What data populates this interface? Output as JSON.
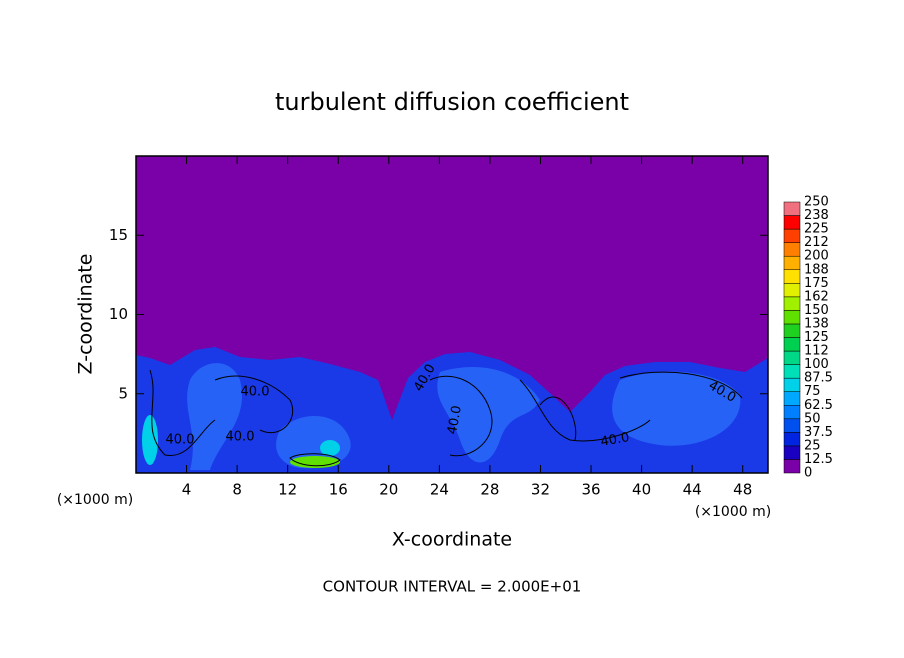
{
  "chart_data": {
    "type": "contour",
    "title": "turbulent diffusion coefficient",
    "xlabel": "X-coordinate",
    "ylabel": "Z-coordinate",
    "x_unit_labels": [
      "(×1000 m)",
      "(×1000 m)"
    ],
    "footer": "CONTOUR INTERVAL = 2.000E+01",
    "xlim": [
      0,
      50
    ],
    "xticks": [
      4,
      8,
      12,
      16,
      20,
      24,
      28,
      32,
      36,
      40,
      44,
      48
    ],
    "ylim": [
      0,
      20
    ],
    "yticks": [
      5,
      10,
      15
    ],
    "contour_labels": [
      "40.0",
      "40.0",
      "40.0",
      "40.0",
      "40.0",
      "40.0",
      "40.0"
    ],
    "colorbar": {
      "levels": [
        0,
        12.5,
        25,
        37.5,
        50,
        62.5,
        75,
        87.5,
        100,
        {
          "value": 112.5,
          "label": "112"
        },
        125,
        {
          "value": 137.5,
          "label": "138"
        },
        150,
        {
          "value": 162.5,
          "label": "162"
        },
        175,
        {
          "value": 187.5,
          "label": "188"
        },
        200,
        {
          "value": 212.5,
          "label": "212"
        },
        225,
        {
          "value": 237.5,
          "label": "238"
        },
        250
      ],
      "colors": [
        "#7a00a8",
        "#1a00c0",
        "#0024e0",
        "#0050f0",
        "#0080ff",
        "#00a8ff",
        "#00d0e8",
        "#00e0b8",
        "#00d888",
        "#00d050",
        "#20d020",
        "#60e000",
        "#a0f000",
        "#e0f000",
        "#ffe000",
        "#ffb000",
        "#ff8000",
        "#ff4000",
        "#ff0000",
        "#f07080"
      ]
    }
  }
}
